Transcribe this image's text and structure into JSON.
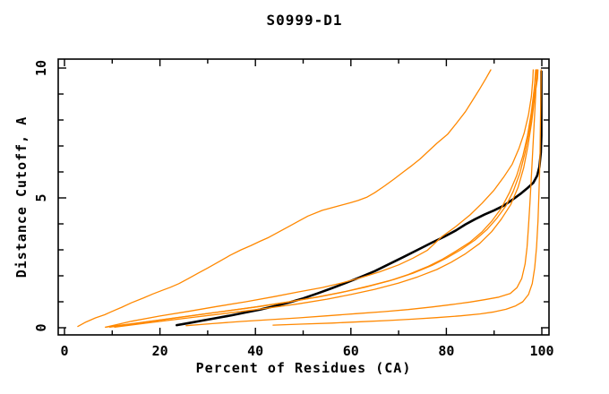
{
  "chart_data": {
    "type": "line",
    "title": "S0999-D1",
    "xlabel": "Percent of Residues (CA)",
    "ylabel": "Distance Cutoff, A",
    "xlim": [
      0,
      100
    ],
    "ylim": [
      0,
      10
    ],
    "grid": false,
    "legend": "none",
    "background": "#ffffff",
    "frame_color": "#000000",
    "accent_orange": "#ff8800",
    "x_major_ticks": [
      0,
      20,
      40,
      60,
      80,
      100
    ],
    "x_minor_ticks": [
      10,
      30,
      50,
      70,
      90
    ],
    "y_major_ticks": [
      0,
      5,
      10
    ],
    "y_minor_ticks": [
      1,
      2,
      3,
      4,
      6,
      7,
      8,
      9
    ],
    "series": [
      {
        "name": "black-curve",
        "color": "#000000",
        "width": 2.6,
        "points": [
          [
            23.5,
            0.1
          ],
          [
            26,
            0.18
          ],
          [
            29,
            0.28
          ],
          [
            32,
            0.38
          ],
          [
            35,
            0.48
          ],
          [
            38,
            0.59
          ],
          [
            41,
            0.7
          ],
          [
            44,
            0.83
          ],
          [
            47,
            0.97
          ],
          [
            50,
            1.13
          ],
          [
            53,
            1.32
          ],
          [
            56,
            1.52
          ],
          [
            59,
            1.73
          ],
          [
            62,
            1.95
          ],
          [
            65,
            2.18
          ],
          [
            68,
            2.45
          ],
          [
            71,
            2.72
          ],
          [
            74,
            3.0
          ],
          [
            77,
            3.28
          ],
          [
            79.5,
            3.5
          ],
          [
            82,
            3.75
          ],
          [
            84,
            3.98
          ],
          [
            86,
            4.18
          ],
          [
            88,
            4.36
          ],
          [
            90,
            4.52
          ],
          [
            92,
            4.7
          ],
          [
            94,
            4.95
          ],
          [
            95.5,
            5.15
          ],
          [
            97,
            5.38
          ],
          [
            98.2,
            5.58
          ],
          [
            99,
            5.85
          ],
          [
            99.5,
            6.2
          ],
          [
            99.8,
            6.75
          ],
          [
            99.9,
            7.4
          ],
          [
            99.9,
            9.87
          ]
        ]
      },
      {
        "name": "orange-curve-1",
        "color": "#ff8800",
        "width": 1.3,
        "points": [
          [
            2.8,
            0.05
          ],
          [
            4.5,
            0.22
          ],
          [
            6.5,
            0.38
          ],
          [
            8.4,
            0.5
          ],
          [
            10,
            0.63
          ],
          [
            12,
            0.79
          ],
          [
            14,
            0.96
          ],
          [
            16.5,
            1.14
          ],
          [
            18.5,
            1.3
          ],
          [
            20.5,
            1.44
          ],
          [
            22.2,
            1.56
          ],
          [
            24,
            1.7
          ],
          [
            26,
            1.9
          ],
          [
            28,
            2.1
          ],
          [
            30,
            2.3
          ],
          [
            32.5,
            2.56
          ],
          [
            34.7,
            2.79
          ],
          [
            37,
            3.0
          ],
          [
            39,
            3.16
          ],
          [
            41,
            3.33
          ],
          [
            42.8,
            3.48
          ],
          [
            45,
            3.7
          ],
          [
            47,
            3.9
          ],
          [
            49,
            4.1
          ],
          [
            51,
            4.3
          ],
          [
            54,
            4.52
          ],
          [
            56,
            4.62
          ],
          [
            58,
            4.72
          ],
          [
            60,
            4.82
          ],
          [
            61.5,
            4.9
          ],
          [
            63.4,
            5.03
          ],
          [
            65,
            5.2
          ],
          [
            67,
            5.45
          ],
          [
            69,
            5.72
          ],
          [
            71,
            6.0
          ],
          [
            72.8,
            6.25
          ],
          [
            74.5,
            6.5
          ],
          [
            76,
            6.76
          ],
          [
            78,
            7.1
          ],
          [
            80.3,
            7.46
          ],
          [
            82,
            7.85
          ],
          [
            84,
            8.32
          ],
          [
            85.5,
            8.76
          ],
          [
            87,
            9.2
          ],
          [
            88.3,
            9.6
          ],
          [
            89.3,
            9.93
          ]
        ]
      },
      {
        "name": "orange-curve-2",
        "color": "#ff8800",
        "width": 1.3,
        "points": [
          [
            8.6,
            0.02
          ],
          [
            14,
            0.25
          ],
          [
            20,
            0.45
          ],
          [
            26,
            0.63
          ],
          [
            32,
            0.82
          ],
          [
            38,
            1.0
          ],
          [
            44,
            1.2
          ],
          [
            49,
            1.38
          ],
          [
            54,
            1.55
          ],
          [
            58,
            1.72
          ],
          [
            62,
            1.92
          ],
          [
            66,
            2.15
          ],
          [
            70,
            2.42
          ],
          [
            73,
            2.68
          ],
          [
            76,
            2.98
          ],
          [
            79,
            3.5
          ],
          [
            82,
            3.9
          ],
          [
            85,
            4.35
          ],
          [
            87.5,
            4.8
          ],
          [
            90,
            5.3
          ],
          [
            92,
            5.8
          ],
          [
            93.8,
            6.3
          ],
          [
            95.2,
            6.9
          ],
          [
            96.3,
            7.5
          ],
          [
            97.2,
            8.2
          ],
          [
            97.8,
            8.9
          ],
          [
            98.1,
            9.55
          ],
          [
            98.2,
            9.93
          ]
        ]
      },
      {
        "name": "orange-curve-3",
        "color": "#ff8800",
        "width": 1.3,
        "points": [
          [
            8.6,
            0.02
          ],
          [
            16,
            0.2
          ],
          [
            24,
            0.4
          ],
          [
            32,
            0.6
          ],
          [
            40,
            0.8
          ],
          [
            47,
            1.0
          ],
          [
            53,
            1.18
          ],
          [
            58,
            1.36
          ],
          [
            63,
            1.56
          ],
          [
            68,
            1.8
          ],
          [
            72,
            2.05
          ],
          [
            76,
            2.35
          ],
          [
            79,
            2.62
          ],
          [
            82,
            2.95
          ],
          [
            85,
            3.3
          ],
          [
            87.5,
            3.7
          ],
          [
            89.5,
            4.1
          ],
          [
            91.5,
            4.6
          ],
          [
            93.2,
            5.2
          ],
          [
            94.7,
            5.85
          ],
          [
            96,
            6.6
          ],
          [
            97,
            7.4
          ],
          [
            97.8,
            8.3
          ],
          [
            98.4,
            9.2
          ],
          [
            98.7,
            9.93
          ]
        ]
      },
      {
        "name": "orange-curve-4",
        "color": "#ff8800",
        "width": 1.3,
        "points": [
          [
            9.5,
            0.02
          ],
          [
            17,
            0.22
          ],
          [
            25,
            0.42
          ],
          [
            33,
            0.62
          ],
          [
            41,
            0.82
          ],
          [
            48,
            1.02
          ],
          [
            54,
            1.22
          ],
          [
            59,
            1.4
          ],
          [
            64,
            1.62
          ],
          [
            69,
            1.86
          ],
          [
            73,
            2.1
          ],
          [
            77,
            2.4
          ],
          [
            80,
            2.68
          ],
          [
            83,
            3.0
          ],
          [
            86,
            3.38
          ],
          [
            88.5,
            3.78
          ],
          [
            90.5,
            4.2
          ],
          [
            92.5,
            4.7
          ],
          [
            94,
            5.25
          ],
          [
            95.4,
            5.95
          ],
          [
            96.5,
            6.75
          ],
          [
            97.4,
            7.6
          ],
          [
            98.1,
            8.5
          ],
          [
            98.8,
            9.4
          ],
          [
            99,
            9.93
          ]
        ]
      },
      {
        "name": "orange-curve-5",
        "color": "#ff8800",
        "width": 1.3,
        "points": [
          [
            10.5,
            0.02
          ],
          [
            18,
            0.2
          ],
          [
            26,
            0.38
          ],
          [
            34,
            0.56
          ],
          [
            42,
            0.74
          ],
          [
            49,
            0.92
          ],
          [
            55,
            1.1
          ],
          [
            60,
            1.28
          ],
          [
            65,
            1.48
          ],
          [
            70,
            1.72
          ],
          [
            74,
            1.96
          ],
          [
            78,
            2.24
          ],
          [
            81,
            2.52
          ],
          [
            84,
            2.85
          ],
          [
            87,
            3.25
          ],
          [
            89.5,
            3.7
          ],
          [
            91.5,
            4.18
          ],
          [
            93.5,
            4.75
          ],
          [
            95,
            5.4
          ],
          [
            96.2,
            6.15
          ],
          [
            97.1,
            7.0
          ],
          [
            97.9,
            7.95
          ],
          [
            98.5,
            8.9
          ],
          [
            99.1,
            9.6
          ],
          [
            99.2,
            9.93
          ]
        ]
      },
      {
        "name": "orange-curve-6",
        "color": "#ff8800",
        "width": 1.3,
        "points": [
          [
            25.5,
            0.08
          ],
          [
            31,
            0.16
          ],
          [
            37,
            0.24
          ],
          [
            43,
            0.31
          ],
          [
            49,
            0.38
          ],
          [
            55,
            0.46
          ],
          [
            61,
            0.54
          ],
          [
            67,
            0.62
          ],
          [
            72,
            0.7
          ],
          [
            77,
            0.8
          ],
          [
            81,
            0.89
          ],
          [
            85,
            0.99
          ],
          [
            88,
            1.08
          ],
          [
            91,
            1.18
          ],
          [
            93.4,
            1.32
          ],
          [
            94.8,
            1.55
          ],
          [
            95.8,
            1.9
          ],
          [
            96.5,
            2.45
          ],
          [
            96.9,
            3.1
          ],
          [
            97.2,
            3.9
          ],
          [
            97.5,
            4.8
          ],
          [
            97.8,
            5.8
          ],
          [
            98.1,
            6.85
          ],
          [
            98.4,
            7.9
          ],
          [
            98.7,
            8.95
          ],
          [
            98.9,
            9.93
          ]
        ]
      },
      {
        "name": "orange-curve-7",
        "color": "#ff8800",
        "width": 1.3,
        "points": [
          [
            43.7,
            0.1
          ],
          [
            50,
            0.14
          ],
          [
            56,
            0.18
          ],
          [
            62,
            0.23
          ],
          [
            68,
            0.28
          ],
          [
            73,
            0.33
          ],
          [
            78,
            0.39
          ],
          [
            83,
            0.46
          ],
          [
            87,
            0.53
          ],
          [
            90,
            0.61
          ],
          [
            92.5,
            0.71
          ],
          [
            94.5,
            0.84
          ],
          [
            96,
            1.0
          ],
          [
            97.2,
            1.28
          ],
          [
            98,
            1.7
          ],
          [
            98.5,
            2.3
          ],
          [
            98.9,
            3.1
          ],
          [
            99.2,
            4.1
          ],
          [
            99.4,
            5.2
          ],
          [
            99.6,
            6.5
          ],
          [
            99.7,
            7.8
          ],
          [
            99.8,
            9.0
          ],
          [
            99.85,
            9.93
          ]
        ]
      }
    ]
  }
}
